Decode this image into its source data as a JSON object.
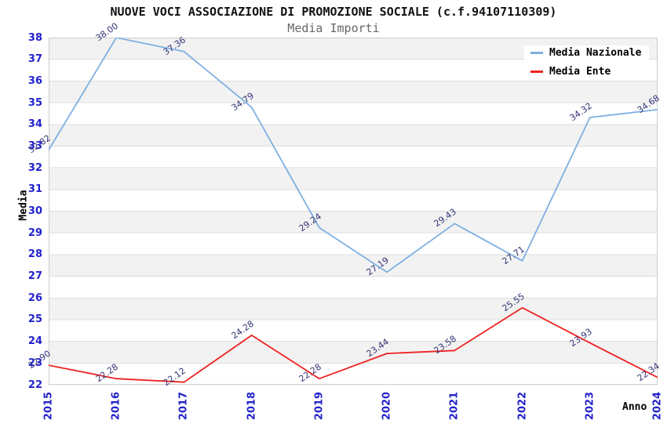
{
  "header": {
    "title": "NUOVE VOCI ASSOCIAZIONE DI PROMOZIONE SOCIALE (c.f.94107110309)",
    "subtitle": "Media Importi"
  },
  "colors": {
    "tick_label": "#2222cc",
    "data_label": "#333377",
    "gridline": "#dddddd",
    "stripe": "#f2f2f2",
    "plot_border": "#cccccc",
    "series_nazionale": "#7eb0e2",
    "series_ente": "#ee2222"
  },
  "chart_data": {
    "type": "line",
    "title": "NUOVE VOCI ASSOCIAZIONE DI PROMOZIONE SOCIALE (c.f.94107110309)",
    "subtitle": "Media Importi",
    "xlabel": "Anno",
    "ylabel": "Media",
    "ylim": [
      22,
      38
    ],
    "y_ticks": [
      38,
      37,
      36,
      35,
      34,
      33,
      32,
      31,
      30,
      29,
      28,
      27,
      26,
      25,
      24,
      23,
      22
    ],
    "grid": true,
    "striped_bands": true,
    "legend_position": "top-right",
    "categories": [
      "2015",
      "2016",
      "2017",
      "2018",
      "2019",
      "2020",
      "2021",
      "2022",
      "2023",
      "2024"
    ],
    "series": [
      {
        "name": "Media Nazionale",
        "color": "#7eb0e2",
        "values": [
          32.82,
          38.0,
          37.36,
          34.79,
          29.24,
          27.19,
          29.43,
          27.71,
          34.32,
          34.68
        ],
        "point_labels": [
          "32.82",
          "38.00",
          "37.36",
          "34.79",
          "29.24",
          "27.19",
          "29.43",
          "27.71",
          "34.32",
          "34.68"
        ]
      },
      {
        "name": "Media Ente",
        "color": "#ee2222",
        "values": [
          22.9,
          22.28,
          22.12,
          24.28,
          22.28,
          23.44,
          23.58,
          25.55,
          23.93,
          22.34
        ],
        "point_labels": [
          "22.90",
          "22.28",
          "22.12",
          "24.28",
          "22.28",
          "23.44",
          "23.58",
          "25.55",
          "23.93",
          "22.34"
        ]
      }
    ]
  }
}
